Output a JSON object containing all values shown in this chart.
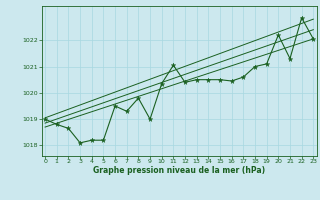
{
  "x": [
    0,
    1,
    2,
    3,
    4,
    5,
    6,
    7,
    8,
    9,
    10,
    11,
    12,
    13,
    14,
    15,
    16,
    17,
    18,
    19,
    20,
    21,
    22,
    23
  ],
  "y": [
    1019.0,
    1018.8,
    1018.65,
    1018.1,
    1018.2,
    1018.2,
    1019.5,
    1019.3,
    1019.8,
    1019.0,
    1020.35,
    1021.05,
    1020.4,
    1020.5,
    1020.5,
    1020.5,
    1020.45,
    1020.6,
    1021.0,
    1021.1,
    1022.2,
    1021.3,
    1022.85,
    1022.05
  ],
  "background_color": "#cce8ee",
  "line_color": "#1a6020",
  "grid_color": "#a8d8e0",
  "ylabel_ticks": [
    1018,
    1019,
    1020,
    1021,
    1022
  ],
  "xlabel_ticks": [
    0,
    1,
    2,
    3,
    4,
    5,
    6,
    7,
    8,
    9,
    10,
    11,
    12,
    13,
    14,
    15,
    16,
    17,
    18,
    19,
    20,
    21,
    22,
    23
  ],
  "xlabel": "Graphe pression niveau de la mer (hPa)",
  "ylim": [
    1017.6,
    1023.3
  ],
  "xlim": [
    -0.3,
    23.3
  ],
  "trend_lower": [
    1018.7,
    1022.05
  ],
  "trend_upper": [
    1019.05,
    1022.8
  ],
  "trend_mid": [
    1018.85,
    1022.4
  ]
}
